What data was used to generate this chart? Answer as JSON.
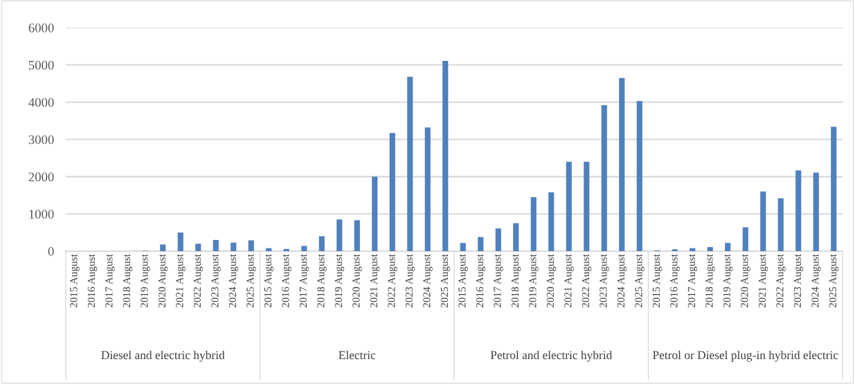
{
  "chart_data": {
    "type": "bar",
    "categories": [
      "2015 August",
      "2016 August",
      "2017 August",
      "2018 August",
      "2019 August",
      "2020 August",
      "2021 August",
      "2022 August",
      "2023 August",
      "2024 August",
      "2025 August",
      "2015 August",
      "2016 August",
      "2017 August",
      "2018 August",
      "2019 August",
      "2020 August",
      "2021 August",
      "2022 August",
      "2023 August",
      "2024 August",
      "2025 August",
      "2015 August",
      "2016 August",
      "2017 August",
      "2018 August",
      "2019 August",
      "2020 August",
      "2021 August",
      "2022 August",
      "2023 August",
      "2024 August",
      "2025 August",
      "2015 August",
      "2016 August",
      "2017 August",
      "2018 August",
      "2019 August",
      "2020 August",
      "2021 August",
      "2022 August",
      "2023 August",
      "2024 August",
      "2025 August"
    ],
    "series": [
      {
        "color": "#4f81bd",
        "values": [
          0,
          0,
          0,
          0,
          10,
          180,
          500,
          200,
          300,
          230,
          290,
          80,
          60,
          140,
          400,
          850,
          830,
          2000,
          3170,
          4680,
          3320,
          5110,
          220,
          380,
          610,
          750,
          1450,
          1580,
          2400,
          2400,
          3920,
          4650,
          4030,
          20,
          50,
          80,
          110,
          220,
          640,
          1600,
          1420,
          2170,
          2110,
          3340
        ]
      }
    ],
    "annotations": [
      "Diesel and electric hybrid",
      "Electric",
      "Petrol and electric hybrid",
      "Petrol or Diesel plug-in hybrid electric"
    ],
    "ylim": [
      0,
      6000
    ],
    "yticks": [
      0,
      1000,
      2000,
      3000,
      4000,
      5000,
      6000
    ],
    "grid": "y"
  }
}
